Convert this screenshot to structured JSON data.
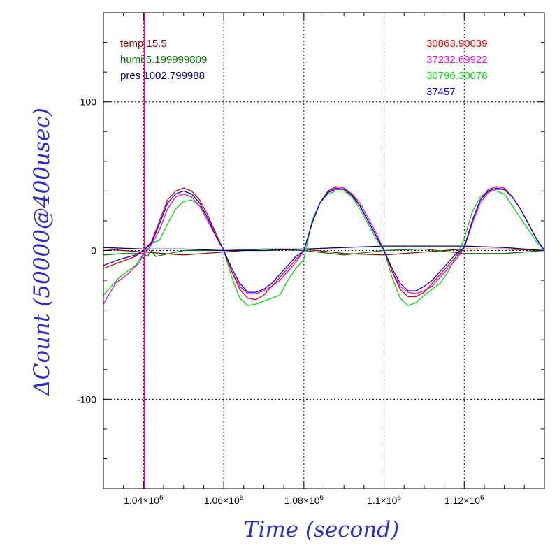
{
  "chart_data": {
    "type": "line",
    "xlabel": "Time (second)",
    "ylabel": "ΔCount (50000@400usec)",
    "xlim": [
      1030000,
      1140000
    ],
    "ylim": [
      -160,
      160
    ],
    "x_ticks": [
      {
        "value": 1040000,
        "mantissa": "1.04×10",
        "exp": "6"
      },
      {
        "value": 1060000,
        "mantissa": "1.06×10",
        "exp": "6"
      },
      {
        "value": 1080000,
        "mantissa": "1.08×10",
        "exp": "6"
      },
      {
        "value": 1100000,
        "mantissa": "1.1×10",
        "exp": "6"
      },
      {
        "value": 1120000,
        "mantissa": "1.12×10",
        "exp": "6"
      }
    ],
    "y_ticks": [
      {
        "value": 100,
        "label": "100"
      },
      {
        "value": 0,
        "label": "0"
      },
      {
        "value": -100,
        "label": "-100"
      }
    ],
    "grid": true,
    "env_legend": [
      {
        "text": "temp 15.5",
        "color": "#990000"
      },
      {
        "text": "humi 5.199999809",
        "color": "#007700"
      },
      {
        "text": "pres 1002.799988",
        "color": "#000088"
      }
    ],
    "series_legend": [
      {
        "text": "30863.90039",
        "color": "#ee0000"
      },
      {
        "text": "37232.69922",
        "color": "#ee00ee"
      },
      {
        "text": "30796.30078",
        "color": "#00dd00"
      },
      {
        "text": "37457",
        "color": "#0000ee"
      }
    ],
    "vertical_markers": [
      {
        "x": 1040200,
        "color": "#ee0000"
      },
      {
        "x": 1040300,
        "color": "#ee00ee"
      }
    ],
    "series": [
      {
        "color": "#990000",
        "x": [
          1030000,
          1040000,
          1050000,
          1060000,
          1070000,
          1080000,
          1090000,
          1100000,
          1110000,
          1120000,
          1130000,
          1140000
        ],
        "y": [
          1,
          -1,
          -3,
          -1,
          1,
          1,
          -2,
          -3,
          -1,
          1,
          1,
          0
        ]
      },
      {
        "color": "#007700",
        "x": [
          1030000,
          1035000,
          1040000,
          1041000,
          1042000,
          1043000,
          1050000,
          1060000,
          1070000,
          1080000,
          1090000,
          1100000,
          1110000,
          1120000,
          1130000,
          1140000
        ],
        "y": [
          -3,
          -2,
          -2,
          -4,
          0,
          -4,
          0,
          0,
          1,
          0,
          -3,
          0,
          1,
          -2,
          -2,
          0
        ]
      },
      {
        "color": "#000088",
        "x": [
          1030000,
          1040000,
          1050000,
          1060000,
          1070000,
          1080000,
          1090000,
          1100000,
          1110000,
          1120000,
          1130000,
          1140000
        ],
        "y": [
          2,
          1,
          1,
          0,
          0,
          1,
          2,
          3,
          3,
          3,
          2,
          0
        ]
      },
      {
        "color": "#00dd00",
        "x": [
          1030000,
          1034000,
          1038000,
          1040000,
          1041000,
          1042000,
          1044000,
          1046000,
          1048000,
          1050000,
          1052000,
          1054000,
          1056000,
          1058000,
          1060000,
          1062000,
          1064000,
          1066000,
          1068000,
          1070000,
          1072000,
          1074000,
          1076000,
          1078000,
          1080000,
          1082000,
          1084000,
          1086000,
          1088000,
          1090000,
          1092000,
          1094000,
          1096000,
          1098000,
          1100000,
          1102000,
          1104000,
          1106000,
          1108000,
          1110000,
          1112000,
          1114000,
          1116000,
          1118000,
          1120000,
          1122000,
          1124000,
          1126000,
          1128000,
          1130000,
          1132000,
          1134000,
          1136000,
          1138000,
          1140000
        ],
        "y": [
          -30,
          -18,
          -10,
          -2,
          2,
          5,
          7,
          18,
          28,
          33,
          34,
          30,
          22,
          12,
          0,
          -18,
          -32,
          -37,
          -36,
          -34,
          -32,
          -30,
          -20,
          -12,
          -6,
          20,
          32,
          38,
          40,
          40,
          36,
          28,
          18,
          8,
          0,
          -18,
          -32,
          -37,
          -35,
          -30,
          -26,
          -22,
          -14,
          -4,
          8,
          26,
          36,
          40,
          40,
          38,
          30,
          22,
          14,
          6,
          0
        ]
      },
      {
        "color": "#ee00ee",
        "x": [
          1030000,
          1033000,
          1036000,
          1039000,
          1040000,
          1041000,
          1042000,
          1044000,
          1046000,
          1048000,
          1050000,
          1052000,
          1054000,
          1056000,
          1058000,
          1060000,
          1062000,
          1064000,
          1066000,
          1068000,
          1070000,
          1072000,
          1074000,
          1076000,
          1078000,
          1080000,
          1082000,
          1084000,
          1086000,
          1088000,
          1090000,
          1092000,
          1094000,
          1096000,
          1098000,
          1100000,
          1102000,
          1104000,
          1106000,
          1108000,
          1110000,
          1112000,
          1114000,
          1116000,
          1118000,
          1120000,
          1122000,
          1124000,
          1126000,
          1128000,
          1130000,
          1132000,
          1134000,
          1136000,
          1138000,
          1140000
        ],
        "y": [
          -36,
          -22,
          -16,
          -8,
          -2,
          0,
          4,
          14,
          28,
          36,
          38,
          36,
          30,
          20,
          10,
          0,
          -14,
          -24,
          -29,
          -29,
          -27,
          -24,
          -20,
          -14,
          -8,
          0,
          18,
          32,
          39,
          41,
          41,
          38,
          32,
          22,
          12,
          0,
          -14,
          -24,
          -28,
          -29,
          -27,
          -24,
          -18,
          -12,
          -6,
          2,
          18,
          32,
          39,
          41,
          41,
          36,
          28,
          18,
          8,
          0
        ]
      },
      {
        "color": "#ee0000",
        "x": [
          1030000,
          1034000,
          1038000,
          1040000,
          1042000,
          1044000,
          1046000,
          1048000,
          1050000,
          1052000,
          1054000,
          1056000,
          1058000,
          1060000,
          1062000,
          1064000,
          1066000,
          1068000,
          1070000,
          1072000,
          1074000,
          1076000,
          1078000,
          1080000,
          1082000,
          1084000,
          1086000,
          1088000,
          1090000,
          1092000,
          1094000,
          1096000,
          1098000,
          1100000,
          1102000,
          1104000,
          1106000,
          1108000,
          1110000,
          1112000,
          1114000,
          1116000,
          1118000,
          1120000,
          1122000,
          1124000,
          1126000,
          1128000,
          1130000,
          1132000,
          1134000,
          1136000,
          1138000,
          1140000
        ],
        "y": [
          -12,
          -8,
          -4,
          0,
          6,
          20,
          34,
          40,
          42,
          40,
          34,
          24,
          12,
          0,
          -14,
          -26,
          -32,
          -33,
          -30,
          -24,
          -18,
          -12,
          -6,
          0,
          18,
          32,
          40,
          43,
          42,
          38,
          30,
          20,
          10,
          0,
          -14,
          -26,
          -31,
          -31,
          -28,
          -22,
          -16,
          -10,
          -4,
          2,
          20,
          34,
          41,
          43,
          42,
          36,
          28,
          18,
          8,
          0
        ]
      },
      {
        "color": "#0000ee",
        "x": [
          1030000,
          1034000,
          1038000,
          1040000,
          1042000,
          1044000,
          1046000,
          1048000,
          1050000,
          1052000,
          1054000,
          1056000,
          1058000,
          1060000,
          1062000,
          1064000,
          1066000,
          1068000,
          1070000,
          1072000,
          1074000,
          1076000,
          1078000,
          1080000,
          1082000,
          1084000,
          1086000,
          1088000,
          1090000,
          1092000,
          1094000,
          1096000,
          1098000,
          1100000,
          1102000,
          1104000,
          1106000,
          1108000,
          1110000,
          1112000,
          1114000,
          1116000,
          1118000,
          1120000,
          1122000,
          1124000,
          1126000,
          1128000,
          1130000,
          1132000,
          1134000,
          1136000,
          1138000,
          1140000
        ],
        "y": [
          -10,
          -6,
          -3,
          0,
          5,
          18,
          32,
          38,
          40,
          38,
          32,
          22,
          10,
          0,
          -12,
          -22,
          -28,
          -28,
          -26,
          -22,
          -16,
          -10,
          -4,
          0,
          18,
          32,
          39,
          42,
          41,
          37,
          30,
          20,
          10,
          0,
          -12,
          -22,
          -27,
          -27,
          -24,
          -20,
          -14,
          -8,
          -2,
          2,
          20,
          34,
          40,
          42,
          41,
          36,
          28,
          18,
          8,
          0
        ]
      }
    ]
  }
}
